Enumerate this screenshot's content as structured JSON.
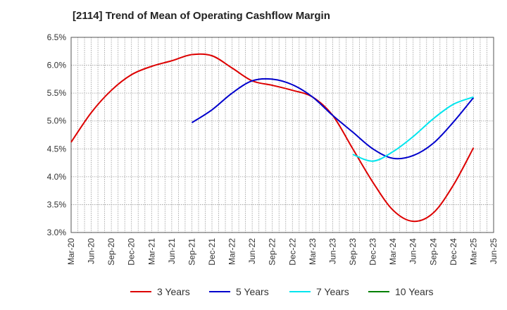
{
  "chart_data": {
    "type": "line",
    "title": "[2114]  Trend of Mean of Operating Cashflow Margin",
    "xlabel": "",
    "ylabel": "",
    "y_tick_labels": [
      "3.0%",
      "3.5%",
      "4.0%",
      "4.5%",
      "5.0%",
      "5.5%",
      "6.0%",
      "6.5%"
    ],
    "ylim": [
      3.0,
      6.5
    ],
    "x_tick_labels": [
      "Mar-20",
      "Jun-20",
      "Sep-20",
      "Dec-20",
      "Mar-21",
      "Jun-21",
      "Sep-21",
      "Dec-21",
      "Mar-22",
      "Jun-22",
      "Sep-22",
      "Dec-22",
      "Mar-23",
      "Jun-23",
      "Sep-23",
      "Dec-23",
      "Mar-24",
      "Jun-24",
      "Sep-24",
      "Dec-24",
      "Mar-25",
      "Jun-25"
    ],
    "grid": true,
    "legend_position": "bottom",
    "series": [
      {
        "name": "3 Years",
        "color": "#dd0000",
        "values": [
          4.62,
          5.15,
          5.55,
          5.83,
          5.98,
          6.08,
          6.19,
          6.17,
          5.95,
          5.72,
          5.64,
          5.55,
          5.43,
          5.1,
          4.5,
          3.9,
          3.4,
          3.2,
          3.35,
          3.85,
          4.52,
          null
        ]
      },
      {
        "name": "5 Years",
        "color": "#0000cc",
        "values": [
          null,
          null,
          null,
          null,
          null,
          null,
          4.97,
          5.2,
          5.5,
          5.72,
          5.75,
          5.65,
          5.43,
          5.1,
          4.8,
          4.5,
          4.33,
          4.38,
          4.6,
          4.98,
          5.42,
          null
        ]
      },
      {
        "name": "7 Years",
        "color": "#00e5ee",
        "values": [
          null,
          null,
          null,
          null,
          null,
          null,
          null,
          null,
          null,
          null,
          null,
          null,
          null,
          null,
          4.4,
          4.28,
          4.45,
          4.72,
          5.04,
          5.3,
          5.43,
          null
        ]
      },
      {
        "name": "10 Years",
        "color": "#008000",
        "values": [
          null,
          null,
          null,
          null,
          null,
          null,
          null,
          null,
          null,
          null,
          null,
          null,
          null,
          null,
          null,
          null,
          null,
          null,
          null,
          null,
          null,
          null
        ]
      }
    ]
  }
}
